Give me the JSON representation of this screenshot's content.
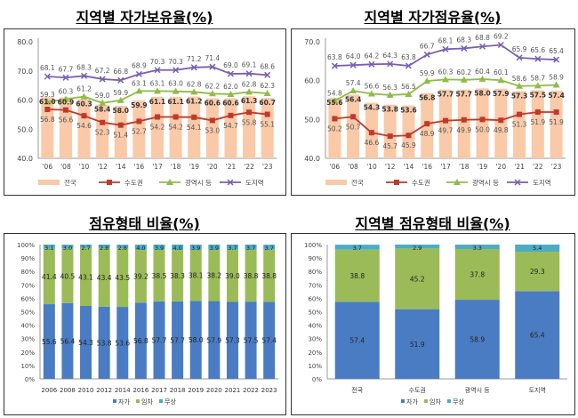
{
  "chart_data": [
    {
      "type": "line",
      "title": "지역별 자가보유율(%)",
      "categories": [
        "'06",
        "'08",
        "'10",
        "'12",
        "'14",
        "'16",
        "'17",
        "'18",
        "'19",
        "'20",
        "'21",
        "'22",
        "'23"
      ],
      "ylim": [
        40,
        80
      ],
      "yticks": [
        "40.0",
        "50.0",
        "60.0",
        "70.0",
        "80.0"
      ],
      "legend": "bottom",
      "series": [
        {
          "name": "전국",
          "kind": "bar",
          "color": "#f9c9a8",
          "values": [
            61.0,
            60.9,
            60.3,
            58.4,
            58.0,
            59.9,
            61.1,
            61.1,
            61.2,
            60.6,
            60.6,
            61.3,
            60.7
          ]
        },
        {
          "name": "수도권",
          "kind": "line",
          "marker": "square",
          "color": "#c0392b",
          "values": [
            56.8,
            56.6,
            54.6,
            52.3,
            51.4,
            52.7,
            54.2,
            54.2,
            54.1,
            53.0,
            54.7,
            55.8,
            55.1
          ]
        },
        {
          "name": "광역시 등",
          "kind": "line",
          "marker": "triangle",
          "color": "#8fbc45",
          "values": [
            59.3,
            60.3,
            61.2,
            59.0,
            59.9,
            63.1,
            63.1,
            63.0,
            62.8,
            62.2,
            62.0,
            62.8,
            62.3
          ]
        },
        {
          "name": "도지역",
          "kind": "line",
          "marker": "x",
          "color": "#7a5fb0",
          "values": [
            68.1,
            67.7,
            68.3,
            67.2,
            66.8,
            68.9,
            70.3,
            70.3,
            71.2,
            71.4,
            69.0,
            69.1,
            68.6
          ]
        }
      ]
    },
    {
      "type": "line",
      "title": "지역별 자가점유율(%)",
      "categories": [
        "'06",
        "'08",
        "'10",
        "'12",
        "'14",
        "'16",
        "'17",
        "'18",
        "'19",
        "'20",
        "'21",
        "'22",
        "'23"
      ],
      "ylim": [
        40,
        70
      ],
      "yticks": [
        "40.0",
        "50.0",
        "60.0",
        "70.0"
      ],
      "legend": "bottom",
      "series": [
        {
          "name": "전국",
          "kind": "bar",
          "color": "#f9c9a8",
          "values": [
            55.6,
            56.4,
            54.3,
            53.8,
            53.6,
            56.8,
            57.7,
            57.7,
            58.0,
            57.9,
            57.3,
            57.5,
            57.4
          ]
        },
        {
          "name": "수도권",
          "kind": "line",
          "marker": "square",
          "color": "#c0392b",
          "values": [
            50.2,
            50.7,
            46.6,
            45.7,
            45.9,
            48.9,
            49.7,
            49.9,
            50.0,
            49.8,
            51.3,
            51.9,
            51.9
          ]
        },
        {
          "name": "광역시 등",
          "kind": "line",
          "marker": "triangle",
          "color": "#8fbc45",
          "values": [
            54.8,
            57.4,
            56.6,
            56.3,
            56.5,
            59.9,
            60.3,
            60.2,
            60.4,
            60.1,
            58.6,
            58.7,
            58.9
          ]
        },
        {
          "name": "도지역",
          "kind": "line",
          "marker": "x",
          "color": "#7a5fb0",
          "values": [
            63.8,
            64.0,
            64.2,
            64.3,
            63.8,
            66.7,
            68.1,
            68.3,
            68.8,
            69.2,
            65.9,
            65.6,
            65.4
          ]
        }
      ]
    },
    {
      "type": "bar",
      "stacked": true,
      "title": "점유형태 비율(%)",
      "categories": [
        "2006",
        "2008",
        "2010",
        "2012",
        "2014",
        "2016",
        "2017",
        "2018",
        "2019",
        "2020",
        "2021",
        "2022",
        "2023"
      ],
      "ylim": [
        0,
        100
      ],
      "yticks": [
        "0%",
        "10%",
        "20%",
        "30%",
        "40%",
        "50%",
        "60%",
        "70%",
        "80%",
        "90%",
        "100%"
      ],
      "legend": "bottom",
      "series": [
        {
          "name": "자가",
          "color": "#4a7cc4",
          "values": [
            55.6,
            56.4,
            54.3,
            53.8,
            53.6,
            56.8,
            57.7,
            57.7,
            58.0,
            57.9,
            57.3,
            57.5,
            57.4
          ]
        },
        {
          "name": "임차",
          "color": "#9bbb59",
          "values": [
            41.4,
            40.5,
            43.1,
            43.4,
            43.5,
            39.2,
            38.5,
            38.3,
            38.1,
            38.2,
            39.0,
            38.8,
            38.8
          ]
        },
        {
          "name": "무상",
          "color": "#4bacc6",
          "values": [
            3.1,
            3.0,
            2.7,
            2.8,
            2.8,
            4.0,
            3.9,
            4.0,
            3.9,
            3.9,
            3.7,
            3.7,
            3.7
          ]
        }
      ]
    },
    {
      "type": "bar",
      "stacked": true,
      "title": "지역별 점유형태 비율(%)",
      "categories": [
        "전국",
        "수도권",
        "광역시 등",
        "도지역"
      ],
      "ylim": [
        0,
        100
      ],
      "yticks": [
        "0%",
        "10%",
        "20%",
        "30%",
        "40%",
        "50%",
        "60%",
        "70%",
        "80%",
        "90%",
        "100%"
      ],
      "legend": "bottom",
      "series": [
        {
          "name": "자가",
          "color": "#4a7cc4",
          "values": [
            57.4,
            51.9,
            58.9,
            65.4
          ]
        },
        {
          "name": "임차",
          "color": "#9bbb59",
          "values": [
            38.8,
            45.2,
            37.8,
            29.3
          ]
        },
        {
          "name": "무상",
          "color": "#4bacc6",
          "values": [
            3.7,
            2.9,
            3.3,
            5.4
          ]
        }
      ]
    }
  ]
}
